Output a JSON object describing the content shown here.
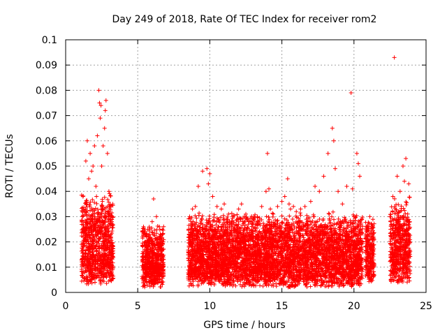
{
  "chart_data": {
    "type": "scatter",
    "title": "Day 249 of 2018, Rate Of TEC Index for receiver rom2",
    "xlabel": "GPS time / hours",
    "ylabel": "ROTI / TECUs",
    "xlim": [
      0,
      25
    ],
    "ylim": [
      0,
      0.1
    ],
    "x_ticks": [
      0,
      5,
      10,
      15,
      20,
      25
    ],
    "x_tick_labels": [
      "0",
      "5",
      "10",
      "15",
      "20",
      "25"
    ],
    "y_ticks": [
      0,
      0.01,
      0.02,
      0.03,
      0.04,
      0.05,
      0.06,
      0.07,
      0.08,
      0.09,
      0.1
    ],
    "y_tick_labels": [
      "0",
      "0.01",
      "0.02",
      "0.03",
      "0.04",
      "0.05",
      "0.06",
      "0.07",
      "0.08",
      "0.09",
      "0.1"
    ],
    "grid": true,
    "marker": "+",
    "series": [
      {
        "name": "rom2",
        "color": "#ff0000",
        "x": [
          1.2,
          1.4,
          1.5,
          1.6,
          1.7,
          1.8,
          1.9,
          2.0,
          2.1,
          2.2,
          2.3,
          2.35,
          2.4,
          2.45,
          2.5,
          2.6,
          2.7,
          2.75,
          2.8,
          2.9,
          3.0,
          3.1,
          3.2,
          5.4,
          5.6,
          5.8,
          6.0,
          6.1,
          6.3,
          6.5,
          6.7,
          8.6,
          8.8,
          9.0,
          9.2,
          9.5,
          9.8,
          9.9,
          10.0,
          10.2,
          10.5,
          10.8,
          11.0,
          11.3,
          11.6,
          12.0,
          12.2,
          12.5,
          12.8,
          13.0,
          13.3,
          13.6,
          13.9,
          14.0,
          14.1,
          14.2,
          14.4,
          14.7,
          15.0,
          15.2,
          15.4,
          15.5,
          15.6,
          15.8,
          16.0,
          16.3,
          16.6,
          17.0,
          17.3,
          17.6,
          17.9,
          18.2,
          18.5,
          18.6,
          18.7,
          18.9,
          19.2,
          19.5,
          19.8,
          19.9,
          20.0,
          20.2,
          20.3,
          20.4,
          21.1,
          21.3,
          22.5,
          22.7,
          22.8,
          23.0,
          23.2,
          23.4,
          23.5,
          23.6,
          23.8
        ],
        "y": [
          0.038,
          0.052,
          0.06,
          0.045,
          0.055,
          0.048,
          0.05,
          0.058,
          0.042,
          0.062,
          0.08,
          0.075,
          0.069,
          0.074,
          0.05,
          0.058,
          0.065,
          0.072,
          0.076,
          0.055,
          0.04,
          0.03,
          0.028,
          0.026,
          0.022,
          0.025,
          0.028,
          0.037,
          0.03,
          0.026,
          0.025,
          0.03,
          0.033,
          0.034,
          0.042,
          0.048,
          0.049,
          0.043,
          0.047,
          0.038,
          0.034,
          0.033,
          0.035,
          0.031,
          0.03,
          0.033,
          0.035,
          0.031,
          0.028,
          0.027,
          0.03,
          0.034,
          0.04,
          0.055,
          0.041,
          0.033,
          0.031,
          0.034,
          0.036,
          0.038,
          0.045,
          0.035,
          0.033,
          0.034,
          0.032,
          0.033,
          0.034,
          0.036,
          0.042,
          0.04,
          0.046,
          0.055,
          0.065,
          0.06,
          0.049,
          0.04,
          0.035,
          0.042,
          0.079,
          0.041,
          0.03,
          0.055,
          0.051,
          0.046,
          0.03,
          0.026,
          0.03,
          0.038,
          0.093,
          0.046,
          0.04,
          0.05,
          0.044,
          0.053,
          0.043
        ]
      }
    ],
    "dense_bands": [
      {
        "x_range": [
          1.1,
          3.3
        ],
        "y_range": [
          0.003,
          0.04
        ]
      },
      {
        "x_range": [
          5.3,
          6.8
        ],
        "y_range": [
          0.002,
          0.027
        ]
      },
      {
        "x_range": [
          8.5,
          20.6
        ],
        "y_range": [
          0.002,
          0.032
        ]
      },
      {
        "x_range": [
          20.8,
          21.4
        ],
        "y_range": [
          0.004,
          0.03
        ]
      },
      {
        "x_range": [
          22.5,
          23.9
        ],
        "y_range": [
          0.003,
          0.038
        ]
      }
    ]
  }
}
